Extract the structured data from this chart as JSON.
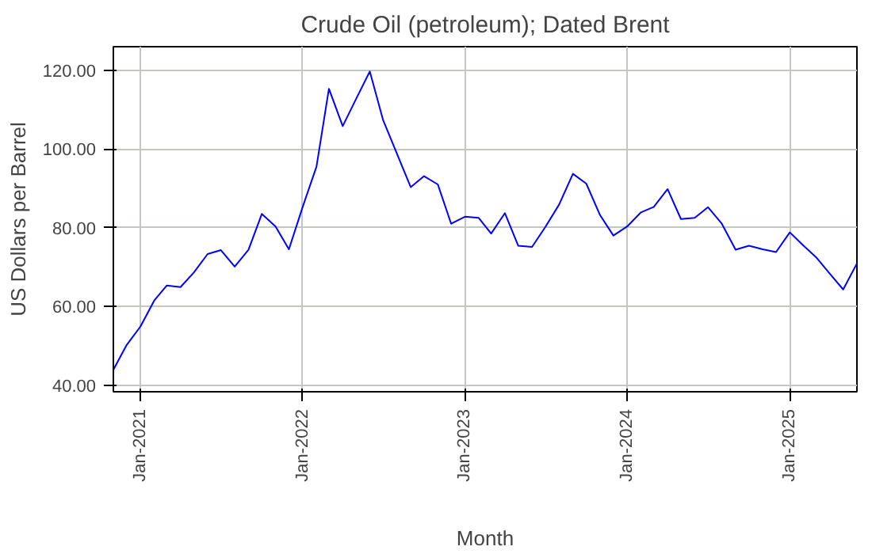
{
  "chart_data": {
    "type": "line",
    "title": "Crude Oil (petroleum); Dated Brent",
    "xlabel": "Month",
    "ylabel": "US Dollars per Barrel",
    "x": [
      "2020-11",
      "2020-12",
      "2021-01",
      "2021-02",
      "2021-03",
      "2021-04",
      "2021-05",
      "2021-06",
      "2021-07",
      "2021-08",
      "2021-09",
      "2021-10",
      "2021-11",
      "2021-12",
      "2022-01",
      "2022-02",
      "2022-03",
      "2022-04",
      "2022-05",
      "2022-06",
      "2022-07",
      "2022-08",
      "2022-09",
      "2022-10",
      "2022-11",
      "2022-12",
      "2023-01",
      "2023-02",
      "2023-03",
      "2023-04",
      "2023-05",
      "2023-06",
      "2023-07",
      "2023-08",
      "2023-09",
      "2023-10",
      "2023-11",
      "2023-12",
      "2024-01",
      "2024-02",
      "2024-03",
      "2024-04",
      "2024-05",
      "2024-06",
      "2024-07",
      "2024-08",
      "2024-09",
      "2024-10",
      "2024-11",
      "2024-12",
      "2025-01",
      "2025-02",
      "2025-03",
      "2025-04",
      "2025-05",
      "2025-06"
    ],
    "series": [
      {
        "color": "#0000ff",
        "values": [
          43.9,
          50.2,
          54.9,
          61.5,
          65.3,
          64.9,
          68.6,
          73.3,
          74.3,
          70.1,
          74.4,
          83.5,
          80.3,
          74.5,
          85.3,
          95.5,
          115.3,
          105.8,
          112.7,
          119.7,
          107.3,
          98.8,
          90.3,
          93.1,
          91.0,
          81.0,
          82.8,
          82.5,
          78.5,
          83.7,
          75.4,
          75.1,
          80.2,
          85.9,
          93.7,
          91.2,
          83.2,
          78.0,
          80.3,
          83.9,
          85.3,
          89.8,
          82.2,
          82.5,
          85.2,
          81.0,
          74.4,
          75.4,
          74.5,
          73.8,
          78.8,
          75.4,
          72.5,
          68.3,
          64.3,
          70.9
        ]
      }
    ],
    "xlim": [
      "2020-11",
      "2025-06"
    ],
    "xticks": [
      {
        "value": "2021-01",
        "label": "Jan-2021"
      },
      {
        "value": "2022-01",
        "label": "Jan-2022"
      },
      {
        "value": "2023-01",
        "label": "Jan-2023"
      },
      {
        "value": "2024-01",
        "label": "Jan-2024"
      },
      {
        "value": "2025-01",
        "label": "Jan-2025"
      }
    ],
    "ylim": [
      38.3,
      126
    ],
    "yticks": [
      {
        "value": 40,
        "label": "40.00"
      },
      {
        "value": 60,
        "label": "60.00"
      },
      {
        "value": 80,
        "label": "80.00"
      },
      {
        "value": 100,
        "label": "100.00"
      },
      {
        "value": 120,
        "label": "120.00"
      }
    ],
    "grid": true,
    "marker": "none",
    "line_style": "solid"
  }
}
